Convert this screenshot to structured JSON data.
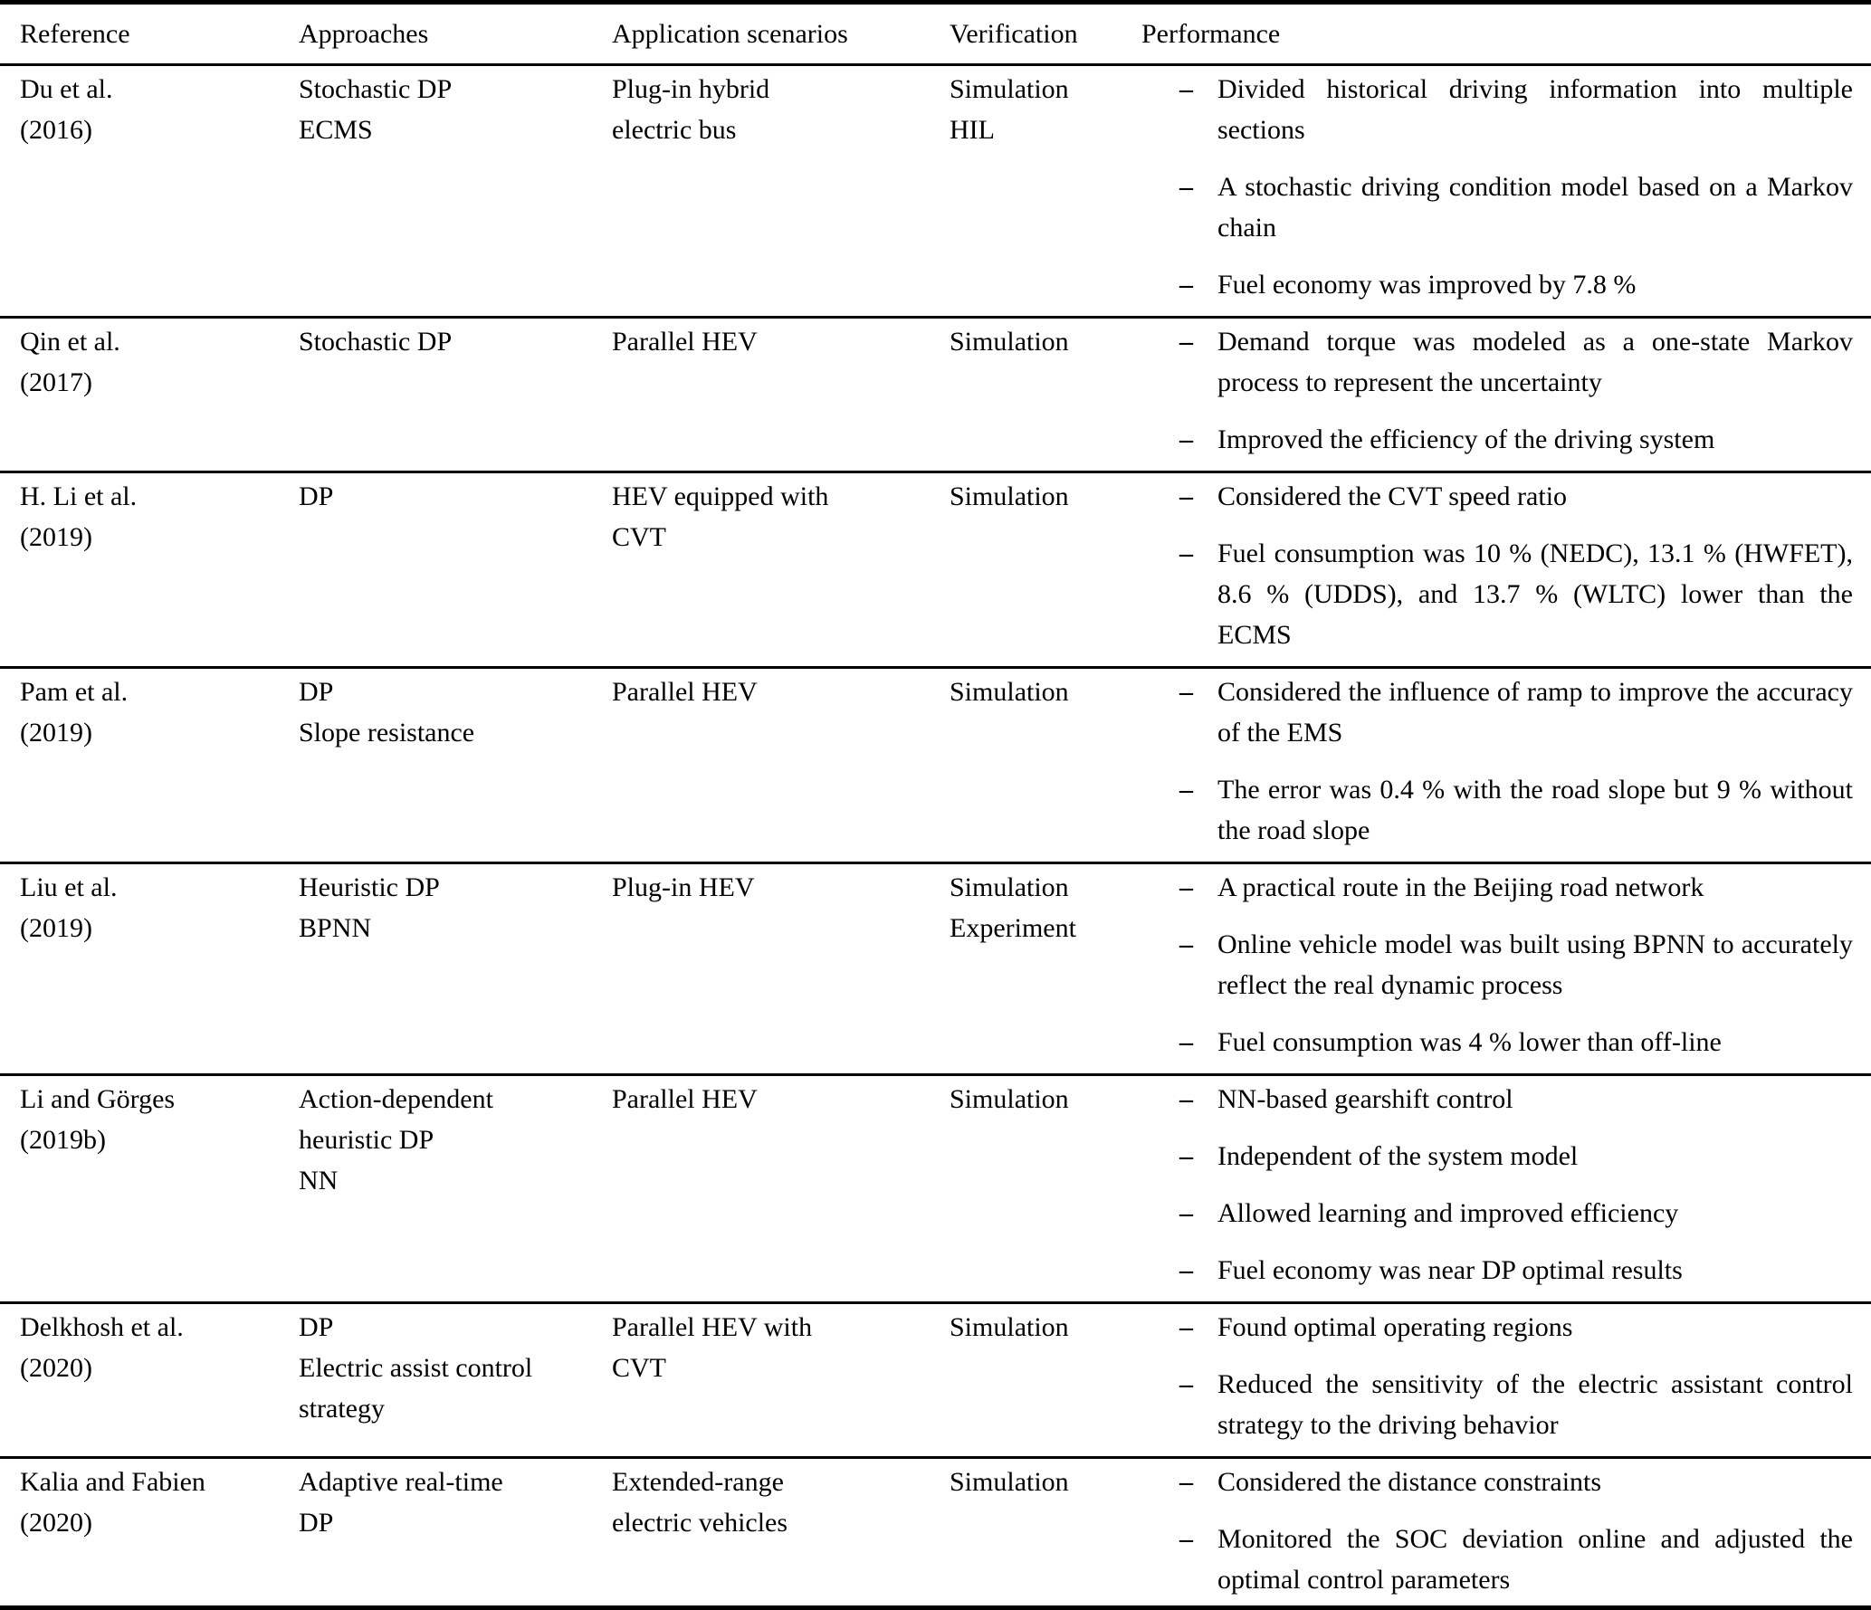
{
  "table": {
    "headers": {
      "reference": "Reference",
      "approaches": "Approaches",
      "application": "Application scenarios",
      "verification": "Verification",
      "performance": "Performance"
    },
    "bullet_char": "–",
    "rows": [
      {
        "reference": [
          "Du et al.",
          "(2016)"
        ],
        "approaches": [
          "Stochastic DP",
          "ECMS"
        ],
        "application": [
          "Plug-in hybrid",
          "electric bus"
        ],
        "verification": [
          "Simulation",
          "HIL"
        ],
        "performance": [
          "Divided historical driving information into multiple sections",
          "A stochastic driving condition model based on a Markov chain",
          "Fuel economy was improved by 7.8 %"
        ]
      },
      {
        "reference": [
          "Qin et al.",
          "(2017)"
        ],
        "approaches": [
          "Stochastic DP"
        ],
        "application": [
          "Parallel HEV"
        ],
        "verification": [
          "Simulation"
        ],
        "performance": [
          "Demand torque was modeled as a one-state Markov process to represent the uncertainty",
          "Improved the efficiency of the driving system"
        ]
      },
      {
        "reference": [
          "H. Li et al.",
          "(2019)"
        ],
        "approaches": [
          "DP"
        ],
        "application": [
          "HEV equipped with",
          "CVT"
        ],
        "verification": [
          "Simulation"
        ],
        "performance": [
          "Considered the CVT speed ratio",
          "Fuel consumption was 10 % (NEDC), 13.1 % (HWFET), 8.6 % (UDDS), and 13.7 % (WLTC) lower than the ECMS"
        ]
      },
      {
        "reference": [
          "Pam et al.",
          "(2019)"
        ],
        "approaches": [
          "DP",
          "Slope resistance"
        ],
        "application": [
          "Parallel HEV"
        ],
        "verification": [
          "Simulation"
        ],
        "performance": [
          "Considered the influence of ramp to improve the accuracy of the EMS",
          "The error was 0.4 % with the road slope but 9 % without the road slope"
        ]
      },
      {
        "reference": [
          "Liu et al.",
          "(2019)"
        ],
        "approaches": [
          "Heuristic DP",
          "BPNN"
        ],
        "application": [
          "Plug-in HEV"
        ],
        "verification": [
          "Simulation",
          "Experiment"
        ],
        "performance": [
          "A practical route in the Beijing road network",
          "Online vehicle model was built using BPNN to accurately reflect the real dynamic process",
          "Fuel consumption was 4 % lower than off-line"
        ]
      },
      {
        "reference": [
          "Li and Görges",
          "(2019b)"
        ],
        "approaches": [
          "Action-dependent",
          "heuristic DP",
          "NN"
        ],
        "application": [
          "Parallel HEV"
        ],
        "verification": [
          "Simulation"
        ],
        "performance": [
          "NN-based gearshift control",
          "Independent of the system model",
          "Allowed learning and improved efficiency",
          "Fuel economy was near DP optimal results"
        ]
      },
      {
        "reference": [
          "Delkhosh et al.",
          "(2020)"
        ],
        "approaches": [
          "DP",
          "Electric assist control",
          "strategy"
        ],
        "application": [
          "Parallel HEV with",
          "CVT"
        ],
        "verification": [
          "Simulation"
        ],
        "performance": [
          "Found optimal operating regions",
          "Reduced the sensitivity of the electric assistant control strategy to the driving behavior"
        ]
      },
      {
        "reference": [
          "Kalia and Fabien",
          "(2020)"
        ],
        "approaches": [
          "Adaptive real-time",
          "DP"
        ],
        "application": [
          "Extended-range",
          "electric vehicles"
        ],
        "verification": [
          "Simulation"
        ],
        "performance": [
          "Considered the distance constraints",
          "Monitored the SOC deviation online and adjusted the optimal control parameters"
        ]
      }
    ]
  }
}
